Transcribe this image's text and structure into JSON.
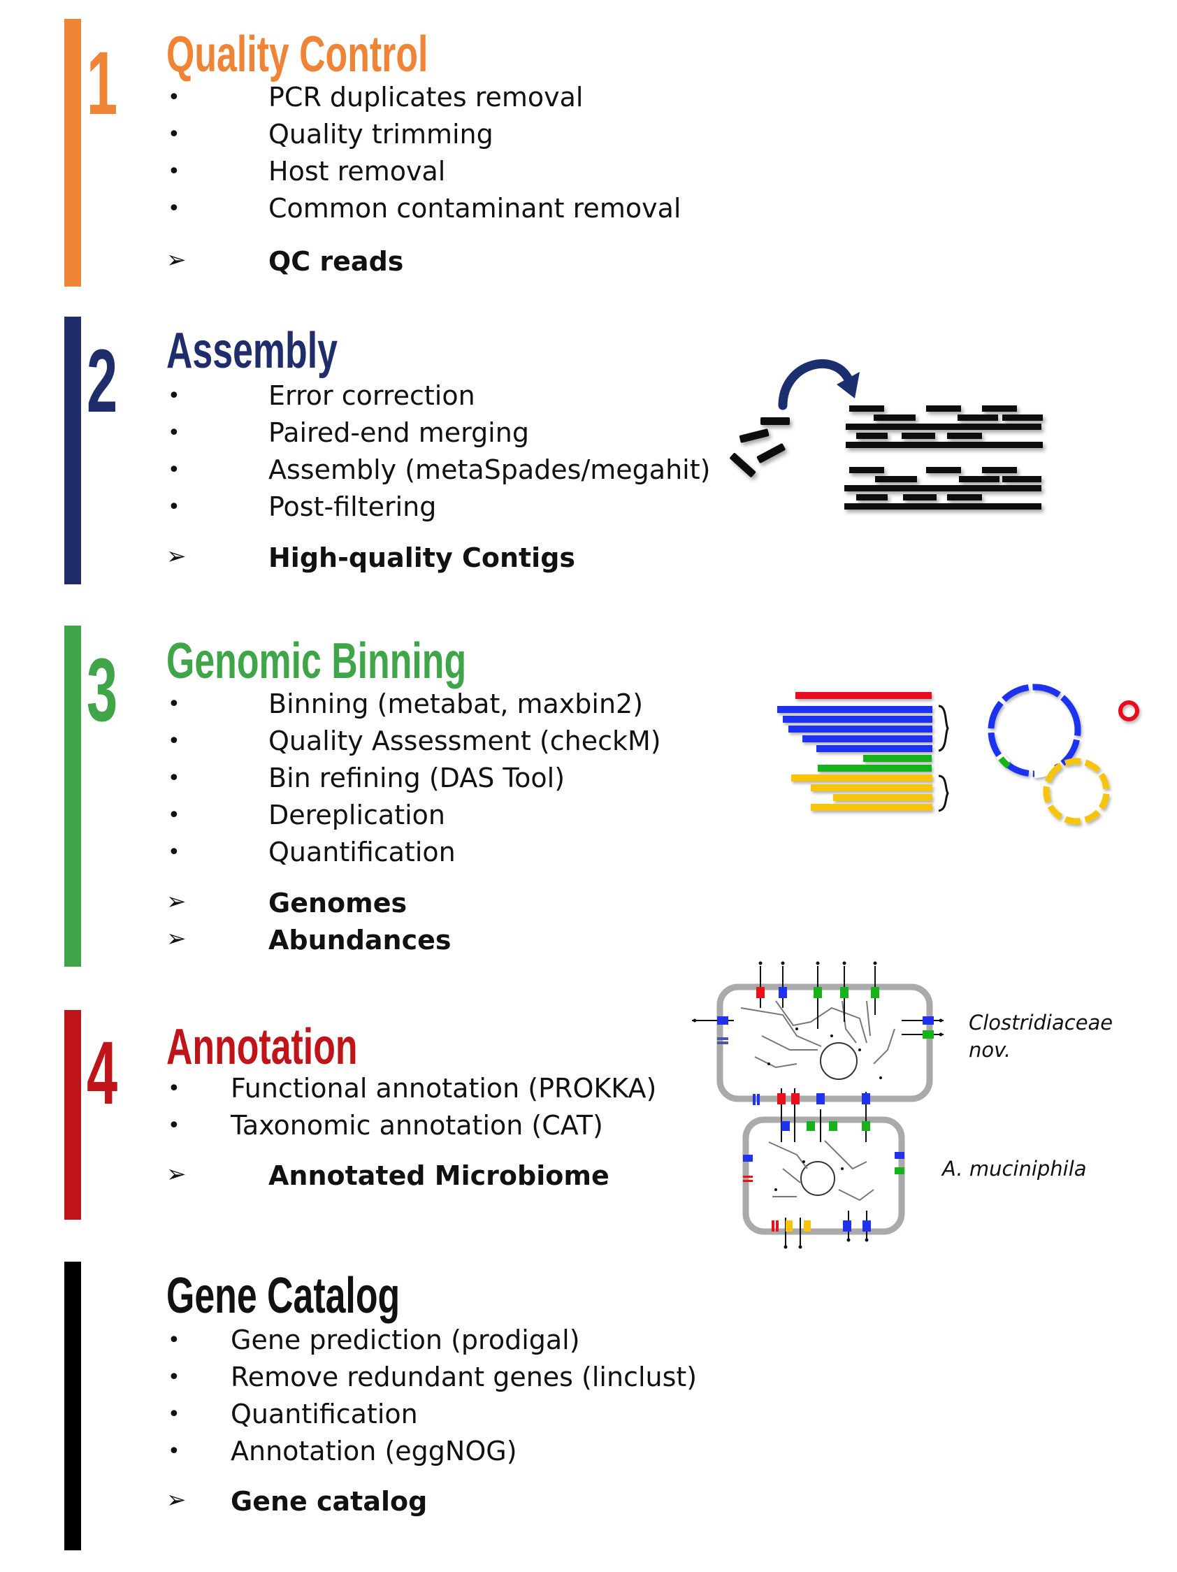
{
  "colors": {
    "step1": "#ef8436",
    "step2": "#1f2d6b",
    "step3": "#3fa548",
    "step4": "#c0141b",
    "step5": "#000000",
    "bin_red": "#e8101a",
    "bin_blue": "#1f33ee",
    "bin_green": "#18b21a",
    "bin_yellow": "#f7c40a",
    "arrow_navy": "#1b2f6e"
  },
  "steps": [
    {
      "number": "1",
      "title": "Quality Control",
      "items": [
        "PCR duplicates removal",
        "Quality trimming",
        "Host removal",
        "Common contaminant removal"
      ],
      "outputs": [
        "QC reads"
      ]
    },
    {
      "number": "2",
      "title": "Assembly",
      "items": [
        "Error correction",
        "Paired-end merging",
        "Assembly (metaSpades/megahit)",
        "Post-filtering"
      ],
      "outputs": [
        "High-quality Contigs"
      ]
    },
    {
      "number": "3",
      "title": "Genomic Binning",
      "items": [
        "Binning (metabat, maxbin2)",
        "Quality Assessment (checkM)",
        "Bin refining (DAS Tool)",
        "Dereplication",
        "Quantification"
      ],
      "outputs": [
        "Genomes",
        "Abundances"
      ]
    },
    {
      "number": "4",
      "title": "Annotation",
      "items": [
        "Functional annotation (PROKKA)",
        "Taxonomic annotation (CAT)"
      ],
      "outputs": [
        "Annotated Microbiome"
      ]
    },
    {
      "number": "",
      "title": "Gene Catalog",
      "items": [
        "Gene prediction (prodigal)",
        "Remove redundant genes (linclust)",
        "Quantification",
        "Annotation (eggNOG)"
      ],
      "outputs": [
        "Gene catalog"
      ]
    }
  ],
  "bullet_glyph": "•",
  "arrow_glyph": "➢",
  "cells": {
    "top_label_line1": "Clostridiaceae",
    "top_label_line2": "nov.",
    "bottom_label": "A. muciniphila"
  },
  "icons": [
    "curved-arrow-icon",
    "read-fragments-icon",
    "contig-stack-icon",
    "bin-bars-icon",
    "genome-ring-icon",
    "cell-metabolism-icon"
  ]
}
